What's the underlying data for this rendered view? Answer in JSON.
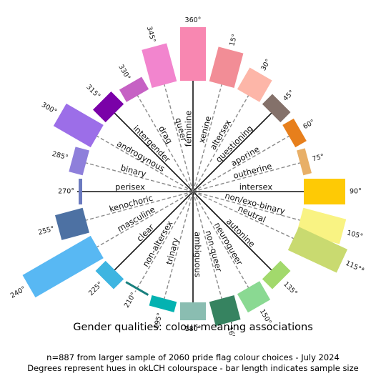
{
  "chart_data": {
    "type": "radial-bar",
    "title": "Gender qualities: colour-meaning associations",
    "subtitle": [
      "n=887 from larger sample of 2060 pride flag colour choices - July 2024",
      "Degrees represent hues in okLCH colourspace - bar length indicates sample size"
    ],
    "hues": [
      {
        "label": "360°",
        "angle": 0,
        "value": 75,
        "color": "#F887B1"
      },
      {
        "label": "15°",
        "angle": 15,
        "value": 50,
        "color": "#F28D96"
      },
      {
        "label": "30°",
        "angle": 30,
        "value": 35,
        "color": "#FDB6A8"
      },
      {
        "label": "45°",
        "angle": 45,
        "value": 20,
        "color": "#84716A"
      },
      {
        "label": "60°",
        "angle": 60,
        "value": 18,
        "color": "#E77F1C"
      },
      {
        "label": "75°",
        "angle": 75,
        "value": 12,
        "color": "#E8AF67"
      },
      {
        "label": "90°",
        "angle": 90,
        "value": 58,
        "color": "#FECA05"
      },
      {
        "label": "105°",
        "angle": 105,
        "value": 62,
        "color": "#F9F383"
      },
      {
        "label": "115°*",
        "angle": 115,
        "value": 75,
        "color": "#C9DA70"
      },
      {
        "label": "135°",
        "angle": 135,
        "value": 20,
        "color": "#A2D96C"
      },
      {
        "label": "150°",
        "angle": 150,
        "value": 30,
        "color": "#8AD992"
      },
      {
        "label": "165°",
        "angle": 165,
        "value": 35,
        "color": "#368360"
      },
      {
        "label": "180°",
        "angle": 180,
        "value": 25,
        "color": "#8ABDB1"
      },
      {
        "label": "195°",
        "angle": 195,
        "value": 15,
        "color": "#04B2B1"
      },
      {
        "label": "210°",
        "angle": 210,
        "value": 3,
        "color": "#19807E"
      },
      {
        "label": "225°",
        "angle": 225,
        "value": 20,
        "color": "#3EB5E1"
      },
      {
        "label": "240°",
        "angle": 240,
        "value": 110,
        "color": "#58B8F3"
      },
      {
        "label": "255°",
        "angle": 255,
        "value": 40,
        "color": "#4D71A3"
      },
      {
        "label": "270°",
        "angle": 270,
        "value": 5,
        "color": "#6B7ABF"
      },
      {
        "label": "285°",
        "angle": 285,
        "value": 20,
        "color": "#8E7FDB"
      },
      {
        "label": "300°",
        "angle": 300,
        "value": 60,
        "color": "#9C6EE8"
      },
      {
        "label": "315°",
        "angle": 315,
        "value": 25,
        "color": "#7A01A8"
      },
      {
        "label": "330°",
        "angle": 330,
        "value": 20,
        "color": "#C661C4"
      },
      {
        "label": "345°",
        "angle": 345,
        "value": 55,
        "color": "#F285CE"
      }
    ],
    "terms": [
      {
        "label": "feminine",
        "angle": 0,
        "line": "solid"
      },
      {
        "label": "xenine",
        "angle": 15,
        "line": "dashed"
      },
      {
        "label": "altersex",
        "angle": 30,
        "line": "dashed"
      },
      {
        "label": "questioning",
        "angle": 45,
        "line": "solid"
      },
      {
        "label": "aporine",
        "angle": 60,
        "line": "dashed"
      },
      {
        "label": "outherine",
        "angle": 75,
        "line": "dashed"
      },
      {
        "label": "intersex",
        "angle": 90,
        "line": "solid"
      },
      {
        "label": "non/exo-binary",
        "angle": 105,
        "line": "dashed"
      },
      {
        "label": "neutral",
        "angle": 115,
        "line": "dashed"
      },
      {
        "label": "autonine",
        "angle": 135,
        "line": "solid"
      },
      {
        "label": "neuroqueer",
        "angle": 150,
        "line": "dashed"
      },
      {
        "label": "non-queer",
        "angle": 165,
        "line": "dashed"
      },
      {
        "label": "ambiguous",
        "angle": 180,
        "line": "solid"
      },
      {
        "label": "trinary",
        "angle": 195,
        "line": "dashed"
      },
      {
        "label": "non-altersex",
        "angle": 210,
        "line": "dashed"
      },
      {
        "label": "clear",
        "angle": 225,
        "line": "solid"
      },
      {
        "label": "masculine",
        "angle": 240,
        "line": "dashed"
      },
      {
        "label": "kenochoric",
        "angle": 255,
        "line": "dashed"
      },
      {
        "label": "perisex",
        "angle": 270,
        "line": "solid"
      },
      {
        "label": "binary",
        "angle": 285,
        "line": "dashed"
      },
      {
        "label": "androgynous",
        "angle": 300,
        "line": "dashed"
      },
      {
        "label": "intergender",
        "angle": 315,
        "line": "solid"
      },
      {
        "label": "drag",
        "angle": 330,
        "line": "dashed"
      },
      {
        "label": "queer",
        "angle": 345,
        "line": "dashed"
      }
    ]
  }
}
